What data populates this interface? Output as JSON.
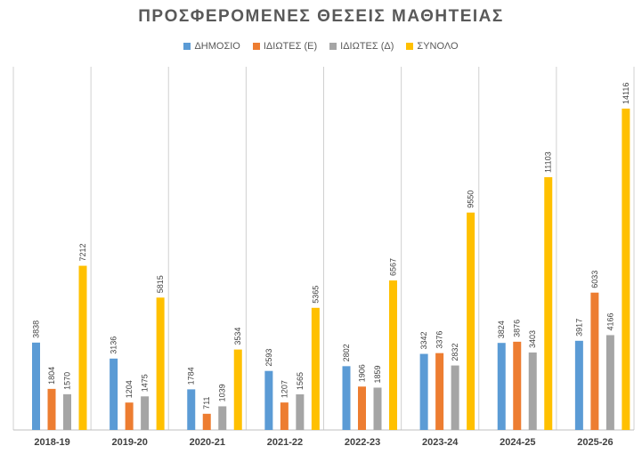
{
  "chart_data": {
    "type": "bar",
    "title": "ΠΡΟΣΦΕΡΟΜΕΝΕΣ ΘΕΣΕΙΣ ΜΑΘΗΤΕΙΑΣ",
    "categories": [
      "2018-19",
      "2019-20",
      "2020-21",
      "2021-22",
      "2022-23",
      "2023-24",
      "2024-25",
      "2025-26"
    ],
    "series": [
      {
        "name": "ΔΗΜΟΣΙΟ",
        "color": "#5b9bd5",
        "values": [
          3838,
          3136,
          1784,
          2593,
          2802,
          3342,
          3824,
          3917
        ]
      },
      {
        "name": "ΙΔΙΩΤΕΣ (Ε)",
        "color": "#ed7d31",
        "values": [
          1804,
          1204,
          711,
          1207,
          1906,
          3376,
          3876,
          6033
        ]
      },
      {
        "name": "ΙΔΙΩΤΕΣ (Δ)",
        "color": "#a5a5a5",
        "values": [
          1570,
          1475,
          1039,
          1565,
          1859,
          2832,
          3403,
          4166
        ]
      },
      {
        "name": "ΣΥΝΟΛΟ",
        "color": "#ffc000",
        "values": [
          7212,
          5815,
          3534,
          5365,
          6567,
          9550,
          11103,
          14116
        ]
      }
    ],
    "ylim": [
      0,
      16000
    ],
    "legend_position": "top",
    "grid": false,
    "data_labels": true
  }
}
